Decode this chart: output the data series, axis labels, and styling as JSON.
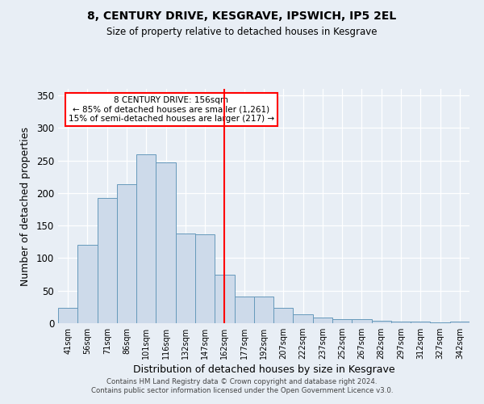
{
  "title": "8, CENTURY DRIVE, KESGRAVE, IPSWICH, IP5 2EL",
  "subtitle": "Size of property relative to detached houses in Kesgrave",
  "xlabel": "Distribution of detached houses by size in Kesgrave",
  "ylabel": "Number of detached properties",
  "categories": [
    "41sqm",
    "56sqm",
    "71sqm",
    "86sqm",
    "101sqm",
    "116sqm",
    "132sqm",
    "147sqm",
    "162sqm",
    "177sqm",
    "192sqm",
    "207sqm",
    "222sqm",
    "237sqm",
    "252sqm",
    "267sqm",
    "282sqm",
    "297sqm",
    "312sqm",
    "327sqm",
    "342sqm"
  ],
  "values": [
    23,
    120,
    193,
    214,
    260,
    247,
    138,
    137,
    75,
    41,
    41,
    24,
    14,
    9,
    6,
    6,
    4,
    3,
    3,
    1,
    3
  ],
  "bar_color": "#cddaea",
  "bar_edge_color": "#6699bb",
  "vline_x": 8,
  "vline_color": "red",
  "annotation_text": "8 CENTURY DRIVE: 156sqm\n← 85% of detached houses are smaller (1,261)\n15% of semi-detached houses are larger (217) →",
  "annotation_box_color": "white",
  "annotation_box_edge_color": "red",
  "ylim": [
    0,
    360
  ],
  "yticks": [
    0,
    50,
    100,
    150,
    200,
    250,
    300,
    350
  ],
  "bg_color": "#e8eef5",
  "footer_line1": "Contains HM Land Registry data © Crown copyright and database right 2024.",
  "footer_line2": "Contains public sector information licensed under the Open Government Licence v3.0."
}
